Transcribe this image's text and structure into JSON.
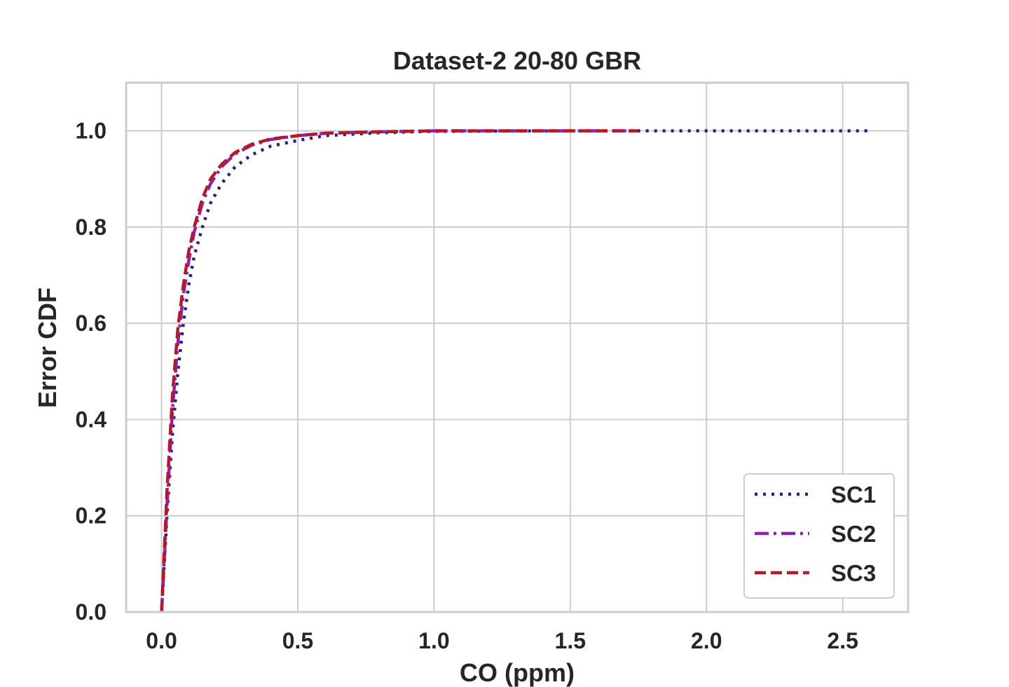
{
  "chart_data": {
    "type": "line",
    "title": "Dataset-2 20-80 GBR",
    "xlabel": "CO (ppm)",
    "ylabel": "Error CDF",
    "xlim": [
      -0.13,
      2.74
    ],
    "ylim": [
      0.0,
      1.1
    ],
    "xticks": [
      0.0,
      0.5,
      1.0,
      1.5,
      2.0,
      2.5
    ],
    "xtick_labels": [
      "0.0",
      "0.5",
      "1.0",
      "1.5",
      "2.0",
      "2.5"
    ],
    "yticks": [
      0.0,
      0.2,
      0.4,
      0.6,
      0.8,
      1.0
    ],
    "ytick_labels": [
      "0.0",
      "0.2",
      "0.4",
      "0.6",
      "0.8",
      "1.0"
    ],
    "grid": true,
    "legend_position": "bottom-right",
    "series": [
      {
        "name": "SC1",
        "color": "#2e1e7a",
        "linestyle": "dotted",
        "x": [
          0.0,
          0.02,
          0.04,
          0.06,
          0.08,
          0.1,
          0.12,
          0.15,
          0.18,
          0.22,
          0.27,
          0.33,
          0.4,
          0.5,
          0.6,
          0.8,
          1.0,
          1.5,
          2.0,
          2.59
        ],
        "y": [
          0.0,
          0.2,
          0.37,
          0.5,
          0.6,
          0.68,
          0.74,
          0.8,
          0.85,
          0.89,
          0.925,
          0.95,
          0.968,
          0.98,
          0.99,
          0.996,
          0.999,
          1.0,
          1.0,
          1.0
        ]
      },
      {
        "name": "SC2",
        "color": "#8e24aa",
        "linestyle": "dashdot",
        "x": [
          0.0,
          0.02,
          0.04,
          0.06,
          0.08,
          0.1,
          0.12,
          0.15,
          0.18,
          0.22,
          0.27,
          0.33,
          0.4,
          0.5,
          0.6,
          0.8,
          1.0,
          1.5,
          1.75
        ],
        "y": [
          0.0,
          0.22,
          0.42,
          0.56,
          0.66,
          0.73,
          0.79,
          0.85,
          0.89,
          0.925,
          0.952,
          0.97,
          0.982,
          0.99,
          0.995,
          0.998,
          1.0,
          1.0,
          1.0
        ]
      },
      {
        "name": "SC3",
        "color": "#b3182b",
        "linestyle": "dashed",
        "x": [
          0.0,
          0.02,
          0.04,
          0.06,
          0.08,
          0.1,
          0.12,
          0.15,
          0.18,
          0.22,
          0.27,
          0.33,
          0.4,
          0.5,
          0.6,
          0.8,
          1.0,
          1.5,
          1.75
        ],
        "y": [
          0.0,
          0.25,
          0.45,
          0.59,
          0.68,
          0.75,
          0.8,
          0.86,
          0.9,
          0.93,
          0.955,
          0.972,
          0.983,
          0.99,
          0.995,
          0.998,
          1.0,
          1.0,
          1.0
        ]
      }
    ]
  }
}
